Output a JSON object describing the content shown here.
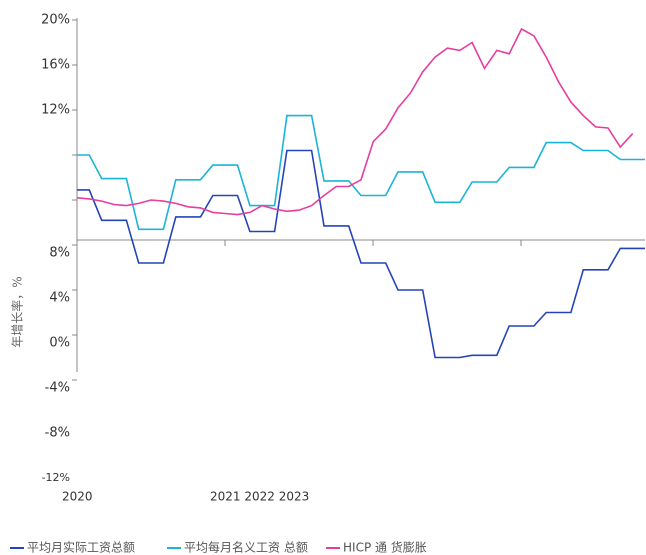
{
  "chart_data": {
    "type": "line",
    "y_axis_label": "年增长率，%",
    "x_labels": [
      "2020",
      "2021 2022 2023"
    ],
    "categories": [
      null,
      null,
      null,
      null,
      null,
      null,
      null,
      null,
      null,
      null,
      null,
      null,
      null,
      null,
      null,
      null,
      null,
      null,
      null,
      null,
      null,
      null,
      null,
      null,
      null,
      null,
      null,
      null,
      null,
      null,
      null,
      null,
      null,
      null,
      null,
      null,
      null,
      null,
      null,
      null,
      null,
      null,
      null,
      null,
      null,
      null,
      null
    ],
    "ylim": [
      -12,
      20
    ],
    "yticks": [
      {
        "value": 20,
        "label": "20%"
      },
      {
        "value": 16,
        "label": "16%"
      },
      {
        "value": 12,
        "label": "12%"
      },
      {
        "value": 8,
        "label": "8%"
      },
      {
        "value": 4,
        "label": "4%"
      },
      {
        "value": 0,
        "label": "0%"
      },
      {
        "value": -4,
        "label": "-4%"
      },
      {
        "value": -8,
        "label": "-8%"
      },
      {
        "value": -12,
        "label": "-12%"
      }
    ],
    "series": [
      {
        "name": "平均月实际工资总额",
        "color": "#2444b8",
        "values": [
          4.9,
          4.9,
          2.2,
          2.2,
          2.2,
          -1.6,
          -1.6,
          -1.6,
          2.5,
          2.5,
          2.5,
          4.4,
          4.4,
          4.4,
          1.2,
          1.2,
          1.2,
          8.4,
          8.4,
          8.4,
          1.7,
          1.7,
          1.7,
          -1.6,
          -1.6,
          -1.6,
          -4,
          -4,
          -4,
          -10,
          -10,
          -10,
          -9.8,
          -9.8,
          -9.8,
          -7.2,
          -7.2,
          -7.2,
          -6,
          -6,
          -6,
          -2.2,
          -2.2,
          -2.2,
          -0.3,
          -0.3,
          -0.3
        ]
      },
      {
        "name": "平均每月名义工资 总额",
        "color": "#1ab4d8",
        "values": [
          8,
          8,
          5.9,
          5.9,
          5.9,
          1.4,
          1.4,
          1.4,
          5.8,
          5.8,
          5.8,
          7.1,
          7.1,
          7.1,
          3.5,
          3.5,
          3.5,
          11.5,
          11.5,
          11.5,
          5.7,
          5.7,
          5.7,
          4.4,
          4.4,
          4.4,
          6.5,
          6.5,
          6.5,
          3.8,
          3.8,
          3.8,
          5.6,
          5.6,
          5.6,
          6.9,
          6.9,
          6.9,
          9.1,
          9.1,
          9.1,
          8.4,
          8.4,
          8.4,
          7.6,
          7.6,
          7.6
        ]
      },
      {
        "name": "HICP 通 货膨胀",
        "color": "#e63d9f",
        "values": [
          4.2,
          4.1,
          3.9,
          3.6,
          3.5,
          3.7,
          4.0,
          3.9,
          3.7,
          3.4,
          3.3,
          2.9,
          2.8,
          2.7,
          2.9,
          3.5,
          3.2,
          3.0,
          3.1,
          3.5,
          4.4,
          5.2,
          5.2,
          5.8,
          9.2,
          10.3,
          12.2,
          13.5,
          15.4,
          16.7,
          17.5,
          17.3,
          18.0,
          15.7,
          17.3,
          17.0,
          19.2,
          18.6,
          16.7,
          14.5,
          12.7,
          11.5,
          10.5,
          10.4,
          8.7,
          9.9,
          null
        ]
      }
    ]
  }
}
